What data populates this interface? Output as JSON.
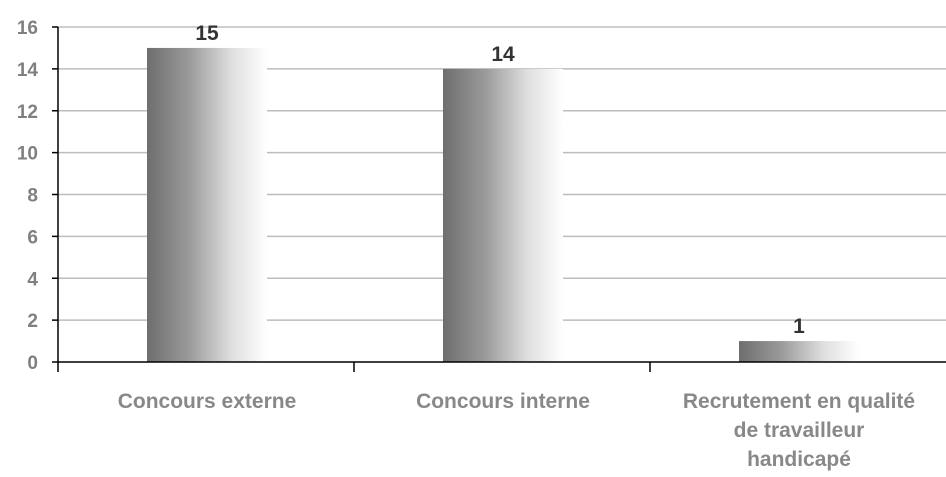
{
  "chart_data": {
    "type": "bar",
    "categories": [
      [
        "Concours externe"
      ],
      [
        "Concours interne"
      ],
      [
        "Recrutement en qualité",
        "de travailleur",
        "handicapé"
      ]
    ],
    "values": [
      15,
      14,
      1
    ],
    "ylim": [
      0,
      16
    ],
    "yticks": [
      0,
      2,
      4,
      6,
      8,
      10,
      12,
      14,
      16
    ],
    "grid": true,
    "legend": "none",
    "colors": {
      "bar_dark": "#6e6e6e",
      "bar_light": "#ffffff",
      "grid": "#bdbdbd",
      "axis": "#000000",
      "tick_text": "#808080",
      "category_text": "#888888",
      "value_text": "#333333"
    }
  }
}
